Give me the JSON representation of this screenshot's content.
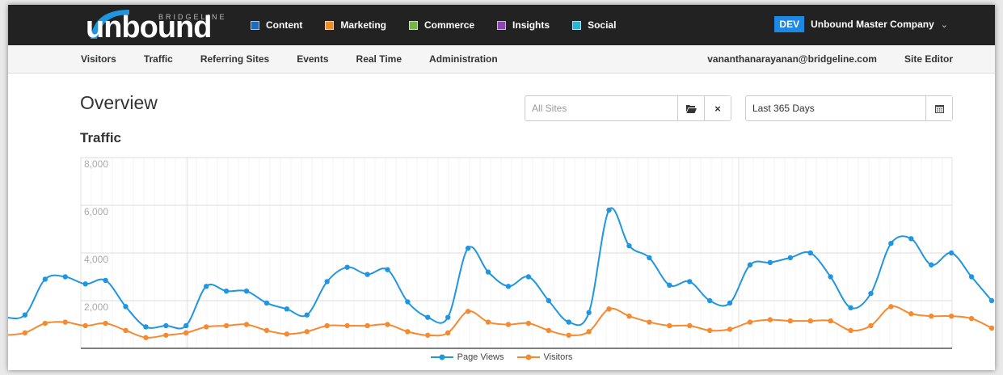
{
  "brand": {
    "name": "unbound",
    "parent": "BRIDGELINE"
  },
  "modules": [
    {
      "label": "Content",
      "color": "#1e6bb8"
    },
    {
      "label": "Marketing",
      "color": "#f28c28"
    },
    {
      "label": "Commerce",
      "color": "#7cb342"
    },
    {
      "label": "Insights",
      "color": "#8e44ad"
    },
    {
      "label": "Social",
      "color": "#29b6d6"
    }
  ],
  "company": {
    "badge": "DEV",
    "name": "Unbound Master Company",
    "chevron_icon": "chevron-down-icon"
  },
  "subnav": {
    "items": [
      "Visitors",
      "Traffic",
      "Referring Sites",
      "Events",
      "Real Time",
      "Administration"
    ],
    "user_email": "vananthanarayanan@bridgeline.com",
    "site_editor": "Site Editor"
  },
  "page": {
    "title": "Overview",
    "section": "Traffic"
  },
  "filters": {
    "sites_placeholder": "All Sites",
    "folder_icon": "folder-open-icon",
    "clear_icon": "close-icon",
    "date_range": "Last 365 Days",
    "calendar_icon": "calendar-icon"
  },
  "chart_data": {
    "type": "line",
    "ylim": [
      0,
      8000
    ],
    "yticks": [
      "8,000",
      "6,000",
      "4,000",
      "2,000"
    ],
    "grid": true,
    "legend": "bottom-center",
    "series": [
      {
        "name": "Page Views",
        "color": "#2196e0",
        "values": [
          1300,
          1400,
          2900,
          3000,
          2700,
          2850,
          1750,
          900,
          950,
          950,
          2600,
          2400,
          2400,
          1900,
          1650,
          1400,
          2800,
          3400,
          3100,
          3300,
          1950,
          1300,
          1300,
          4200,
          3200,
          2600,
          3000,
          2000,
          1100,
          1500,
          5800,
          4300,
          3800,
          2650,
          2800,
          2000,
          1900,
          3500,
          3600,
          3800,
          4000,
          3000,
          1700,
          2300,
          4400,
          4600,
          3500,
          4000,
          3000,
          2000
        ]
      },
      {
        "name": "Visitors",
        "color": "#f58a30",
        "values": [
          550,
          650,
          1050,
          1100,
          950,
          1050,
          750,
          450,
          550,
          650,
          900,
          950,
          1000,
          750,
          600,
          700,
          950,
          950,
          950,
          1000,
          700,
          550,
          650,
          1550,
          1100,
          1000,
          1050,
          750,
          550,
          700,
          1650,
          1350,
          1100,
          950,
          950,
          750,
          800,
          1100,
          1200,
          1150,
          1150,
          1150,
          750,
          950,
          1750,
          1450,
          1350,
          1350,
          1250,
          850
        ]
      }
    ]
  }
}
